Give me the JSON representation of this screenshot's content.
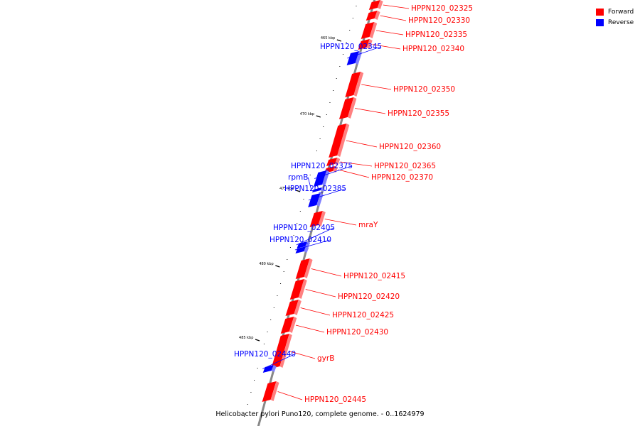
{
  "colors": {
    "forward": "#ff0000",
    "reverse": "#0000ff",
    "backbone": "#888888"
  },
  "legend": {
    "forward": "Forward",
    "reverse": "Reverse"
  },
  "caption": "Helicobacter pylori Puno120, complete genome. - 0..1624979",
  "scale_ticks": [
    "465 kbp",
    "470 kbp",
    "475 kbp",
    "480 kbp",
    "485 kbp"
  ],
  "genes": [
    {
      "name": "HPPN120_02325",
      "strand": "forward"
    },
    {
      "name": "HPPN120_02330",
      "strand": "forward"
    },
    {
      "name": "HPPN120_02335",
      "strand": "forward"
    },
    {
      "name": "HPPN120_02340",
      "strand": "forward"
    },
    {
      "name": "HPPN120_02345",
      "strand": "reverse"
    },
    {
      "name": "HPPN120_02350",
      "strand": "forward"
    },
    {
      "name": "HPPN120_02355",
      "strand": "forward"
    },
    {
      "name": "HPPN120_02360",
      "strand": "forward"
    },
    {
      "name": "HPPN120_02365",
      "strand": "forward"
    },
    {
      "name": "HPPN120_02370",
      "strand": "forward"
    },
    {
      "name": "HPPN120_02375",
      "strand": "reverse"
    },
    {
      "name": "rpmB",
      "strand": "reverse"
    },
    {
      "name": "HPPN120_02385",
      "strand": "reverse"
    },
    {
      "name": "mraY",
      "strand": "forward"
    },
    {
      "name": "HPPN120_02405",
      "strand": "reverse"
    },
    {
      "name": "HPPN120_02410",
      "strand": "reverse"
    },
    {
      "name": "HPPN120_02415",
      "strand": "forward"
    },
    {
      "name": "HPPN120_02420",
      "strand": "forward"
    },
    {
      "name": "HPPN120_02425",
      "strand": "forward"
    },
    {
      "name": "HPPN120_02430",
      "strand": "forward"
    },
    {
      "name": "gyrB",
      "strand": "forward"
    },
    {
      "name": "HPPN120_02440",
      "strand": "reverse"
    },
    {
      "name": "HPPN120_02445",
      "strand": "forward"
    }
  ]
}
